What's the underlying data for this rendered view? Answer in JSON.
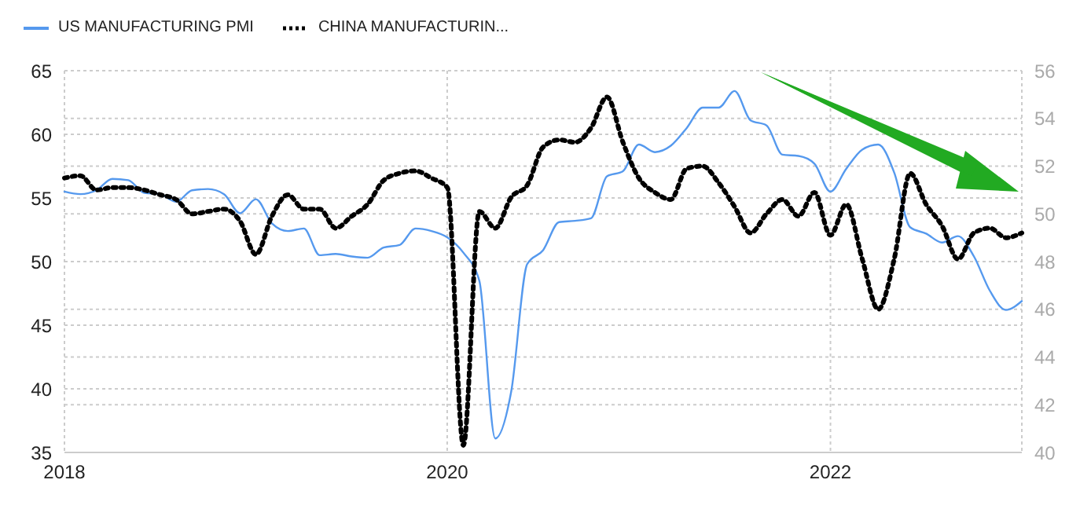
{
  "chart_data": {
    "type": "line",
    "x": [
      "2018-01",
      "2018-02",
      "2018-03",
      "2018-04",
      "2018-05",
      "2018-06",
      "2018-07",
      "2018-08",
      "2018-09",
      "2018-10",
      "2018-11",
      "2018-12",
      "2019-01",
      "2019-02",
      "2019-03",
      "2019-04",
      "2019-05",
      "2019-06",
      "2019-07",
      "2019-08",
      "2019-09",
      "2019-10",
      "2019-11",
      "2019-12",
      "2020-01",
      "2020-02",
      "2020-03",
      "2020-04",
      "2020-05",
      "2020-06",
      "2020-07",
      "2020-08",
      "2020-09",
      "2020-10",
      "2020-11",
      "2020-12",
      "2021-01",
      "2021-02",
      "2021-03",
      "2021-04",
      "2021-05",
      "2021-06",
      "2021-07",
      "2021-08",
      "2021-09",
      "2021-10",
      "2021-11",
      "2021-12",
      "2022-01",
      "2022-02",
      "2022-03",
      "2022-04",
      "2022-05",
      "2022-06",
      "2022-07",
      "2022-08",
      "2022-09",
      "2022-10",
      "2022-11",
      "2022-12",
      "2023-01"
    ],
    "series": [
      {
        "name": "US MANUFACTURING PMI",
        "color": "#5599ee",
        "line_style": "solid",
        "values": [
          55.5,
          55.3,
          55.6,
          56.5,
          56.4,
          55.4,
          55.3,
          54.7,
          55.6,
          55.7,
          55.3,
          53.8,
          54.9,
          53.0,
          52.4,
          52.6,
          50.5,
          50.6,
          50.4,
          50.3,
          51.1,
          51.3,
          52.6,
          52.4,
          51.9,
          50.7,
          48.5,
          36.1,
          39.8,
          49.8,
          50.9,
          53.1,
          53.2,
          53.4,
          56.7,
          57.1,
          59.2,
          58.6,
          59.1,
          60.5,
          62.1,
          62.1,
          63.4,
          61.1,
          60.7,
          58.4,
          58.3,
          57.7,
          55.5,
          57.3,
          58.8,
          59.2,
          57.0,
          52.7,
          52.2,
          51.5,
          52.0,
          50.4,
          47.7,
          46.2,
          46.9
        ]
      },
      {
        "name": "CHINA MANUFACTURIN...",
        "color": "#000000",
        "line_style": "dotted",
        "axis": "y2",
        "values": [
          51.5,
          51.6,
          51.0,
          51.1,
          51.1,
          51.0,
          50.8,
          50.6,
          50.0,
          50.1,
          50.2,
          49.7,
          48.3,
          49.9,
          50.8,
          50.2,
          50.2,
          49.4,
          49.9,
          50.4,
          51.4,
          51.7,
          51.8,
          51.5,
          51.1,
          40.3,
          50.1,
          49.4,
          50.7,
          51.2,
          52.8,
          53.1,
          53.0,
          53.6,
          54.9,
          53.0,
          51.5,
          50.9,
          50.6,
          51.9,
          52.0,
          51.3,
          50.3,
          49.2,
          50.0,
          50.6,
          49.9,
          50.9,
          49.1,
          50.4,
          48.1,
          46.0,
          48.1,
          51.7,
          50.4,
          49.5,
          48.1,
          49.2,
          49.4,
          49.0,
          49.2
        ]
      }
    ],
    "xlim": [
      "2018-01",
      "2023-01"
    ],
    "xticks": [
      "2018",
      "2020",
      "2022"
    ],
    "ylim": [
      35,
      65
    ],
    "yticks": [
      35,
      40,
      45,
      50,
      55,
      60,
      65
    ],
    "y2lim": [
      40,
      56
    ],
    "y2ticks": [
      40,
      42,
      44,
      46,
      48,
      50,
      52,
      54,
      56
    ],
    "grid": true,
    "legend": "top left"
  }
}
